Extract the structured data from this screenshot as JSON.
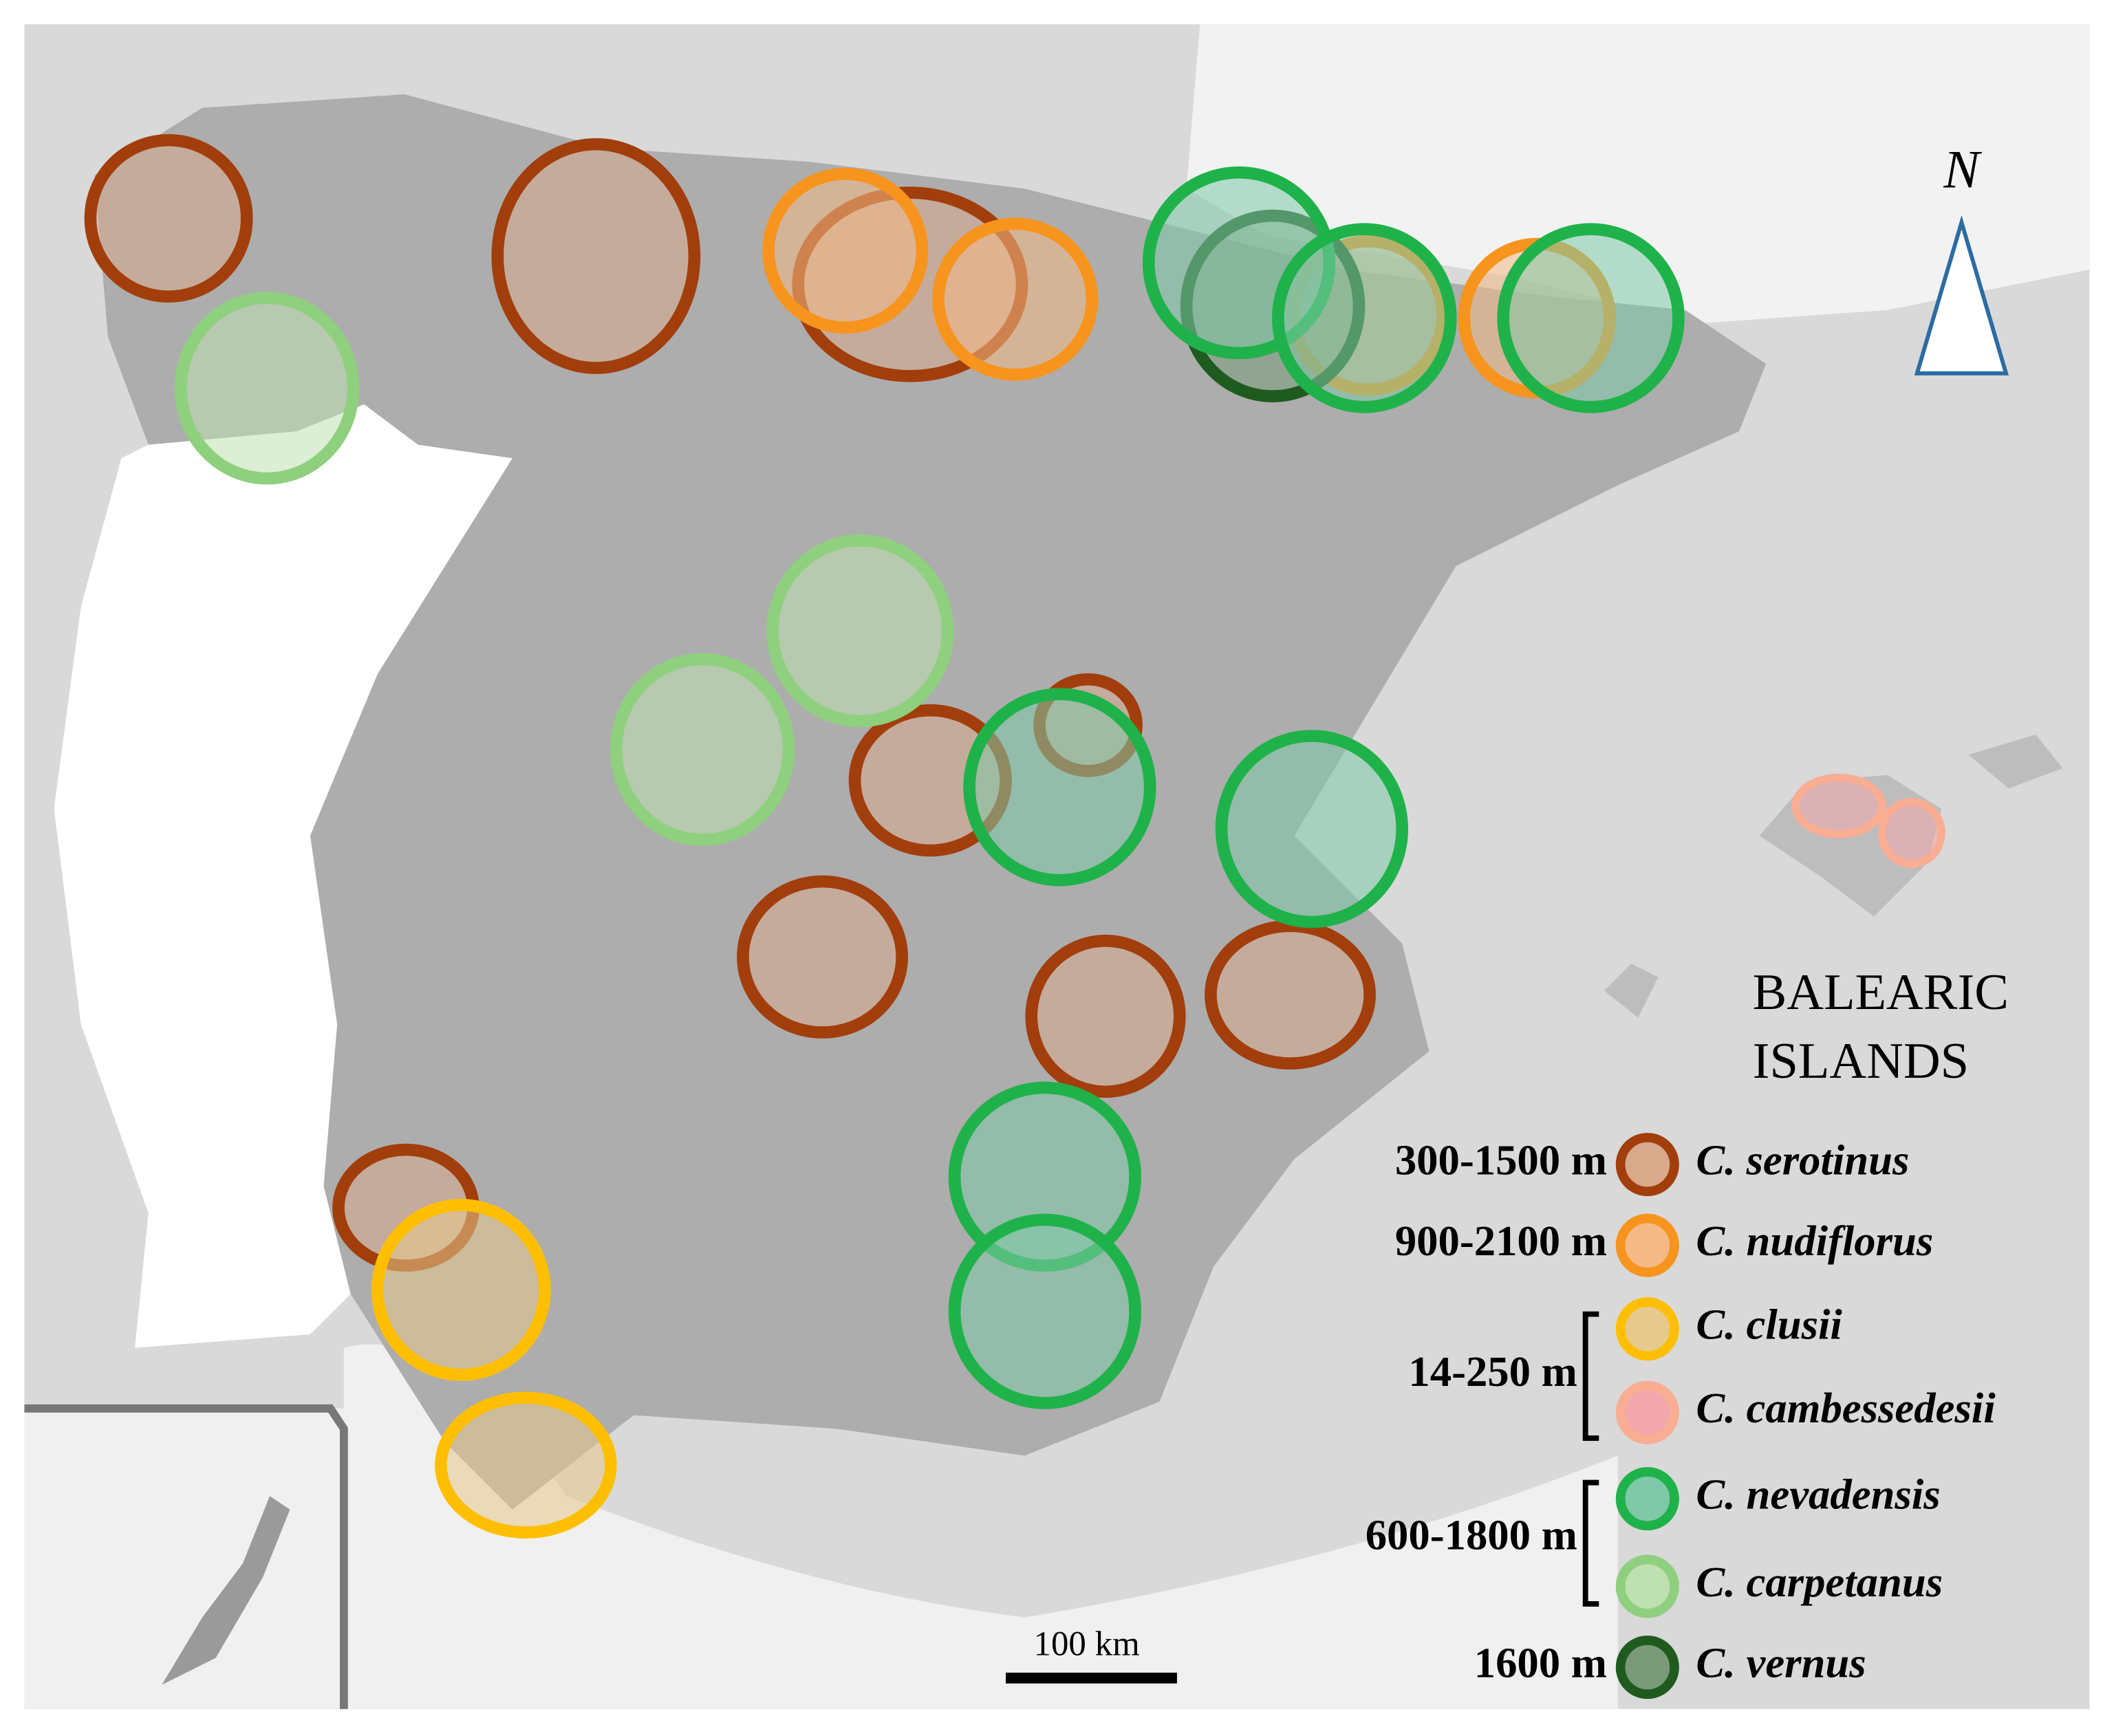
{
  "north": "N",
  "region_label": [
    "BALEARIC",
    "ISLANDS"
  ],
  "scale_bar": "100 km",
  "legend": {
    "ranges": [
      "300-1500 m",
      "900-2100 m",
      "14-250 m",
      "600-1800 m",
      "1600 m"
    ],
    "species": [
      {
        "name": "C. serotinus",
        "color": "#a23e0c",
        "fill": "#d9a98c"
      },
      {
        "name": "C. nudiflorus",
        "color": "#f7941d",
        "fill": "#f4b985"
      },
      {
        "name": "C. clusii",
        "color": "#ffbf00",
        "fill": "#e6c98c"
      },
      {
        "name": "C. cambessedesii",
        "color": "#f9ad93",
        "fill": "#f2a7ad"
      },
      {
        "name": "C. nevadensis",
        "color": "#1fb24a",
        "fill": "#7fc8a8"
      },
      {
        "name": "C. carpetanus",
        "color": "#8fd07e",
        "fill": "#bfe0b0"
      },
      {
        "name": "C. vernus",
        "color": "#1f5b1f",
        "fill": "#7a9a7a"
      }
    ]
  }
}
